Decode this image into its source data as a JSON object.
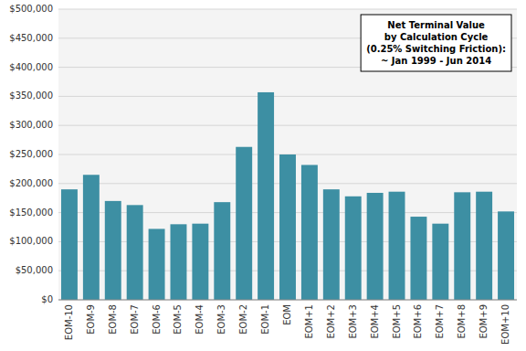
{
  "chart_data": {
    "type": "bar",
    "annotation": "Net Terminal Value\nby Calculation Cycle\n(0.25% Switching Friction):\n~ Jan 1999 - Jun 2014",
    "categories": [
      "EOM-10",
      "EOM-9",
      "EOM-8",
      "EOM-7",
      "EOM-6",
      "EOM-5",
      "EOM-4",
      "EOM-3",
      "EOM-2",
      "EOM-1",
      "EOM",
      "EOM+1",
      "EOM+2",
      "EOM+3",
      "EOM+4",
      "EOM+5",
      "EOM+6",
      "EOM+7",
      "EOM+8",
      "EOM+9",
      "EOM+10"
    ],
    "values": [
      190000,
      215000,
      170000,
      163000,
      122000,
      130000,
      131000,
      168000,
      263000,
      357000,
      250000,
      232000,
      190000,
      178000,
      184000,
      186000,
      143000,
      131000,
      185000,
      186000,
      152000
    ],
    "color": "#3d8fa3",
    "ylim": [
      0,
      500000
    ],
    "yticks": [
      {
        "value": 0,
        "label": "$0"
      },
      {
        "value": 50000,
        "label": "$50,000"
      },
      {
        "value": 100000,
        "label": "$100,000"
      },
      {
        "value": 150000,
        "label": "$150,000"
      },
      {
        "value": 200000,
        "label": "$200,000"
      },
      {
        "value": 250000,
        "label": "$250,000"
      },
      {
        "value": 300000,
        "label": "$300,000"
      },
      {
        "value": 350000,
        "label": "$350,000"
      },
      {
        "value": 400000,
        "label": "$400,000"
      },
      {
        "value": 450000,
        "label": "$450,000"
      },
      {
        "value": 500000,
        "label": "$500,000"
      }
    ],
    "grid": true
  }
}
